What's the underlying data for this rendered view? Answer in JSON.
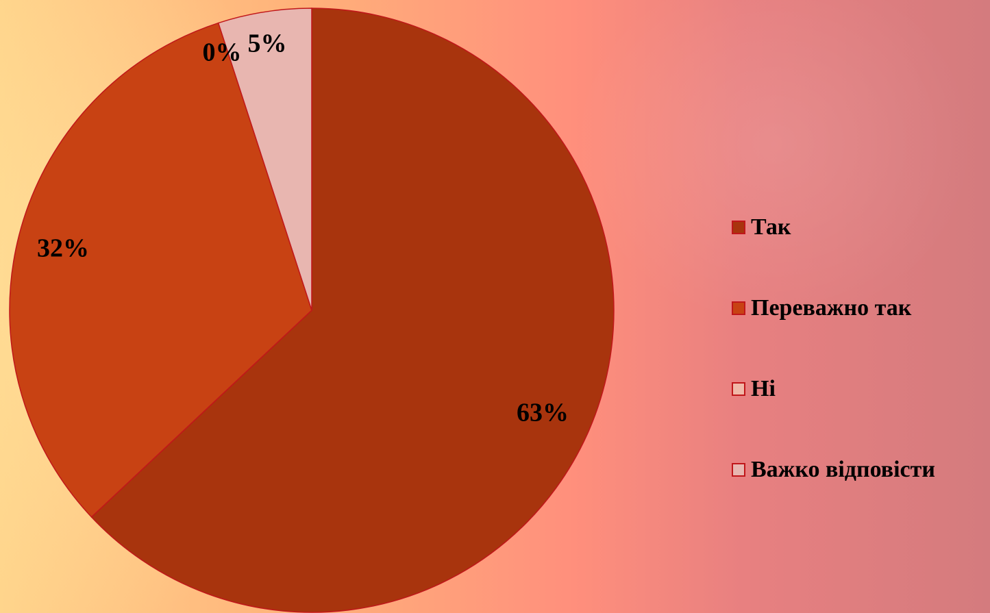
{
  "chart_data": {
    "type": "pie",
    "title": "",
    "categories": [
      "Так",
      "Переважно так",
      "Ні",
      "Важко відповісти"
    ],
    "values": [
      63,
      32,
      0,
      5
    ],
    "value_labels": [
      "63%",
      "32%",
      "0%",
      "5%"
    ],
    "colors": [
      "#a8340d",
      "#c84213",
      "#f0b8a8",
      "#e8b6b0"
    ],
    "slice_border_color": "#c0171a",
    "start_angle": "12 o'clock",
    "direction": "clockwise",
    "legend_position": "right"
  }
}
